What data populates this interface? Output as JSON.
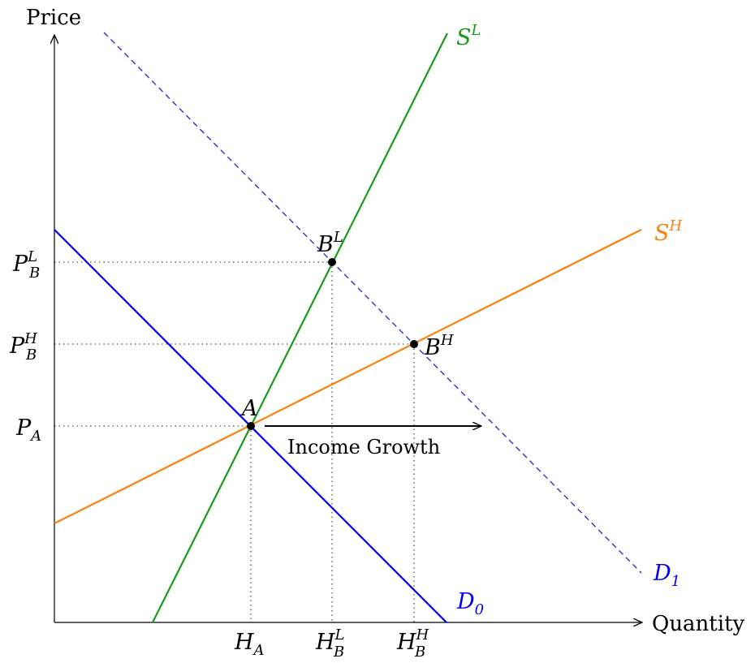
{
  "diagram": {
    "axes": {
      "x_label": "Quantity",
      "y_label": "Price"
    },
    "curves": {
      "supply_low": {
        "base": "S",
        "sup": "L",
        "color": "#1a9a1a"
      },
      "supply_high": {
        "base": "S",
        "sup": "H",
        "color": "#ff7f0e"
      },
      "demand_0": {
        "base": "D",
        "sub": "0",
        "color": "#0000ee"
      },
      "demand_1": {
        "base": "D",
        "sub": "1",
        "color": "#0000ee"
      }
    },
    "points": {
      "A": {
        "base": "A"
      },
      "BL": {
        "base": "B",
        "sup": "L"
      },
      "BH": {
        "base": "B",
        "sup": "H"
      }
    },
    "price_ticks": {
      "PBL": {
        "base": "P",
        "sub": "B",
        "sup": "L"
      },
      "PBH": {
        "base": "P",
        "sub": "B",
        "sup": "H"
      },
      "PA": {
        "base": "P",
        "sub": "A"
      }
    },
    "quantity_ticks": {
      "HA": {
        "base": "H",
        "sub": "A"
      },
      "HBL": {
        "base": "H",
        "sub": "B",
        "sup": "L"
      },
      "HBH": {
        "base": "H",
        "sub": "B",
        "sup": "H"
      }
    },
    "shift_label": "Income Growth"
  }
}
